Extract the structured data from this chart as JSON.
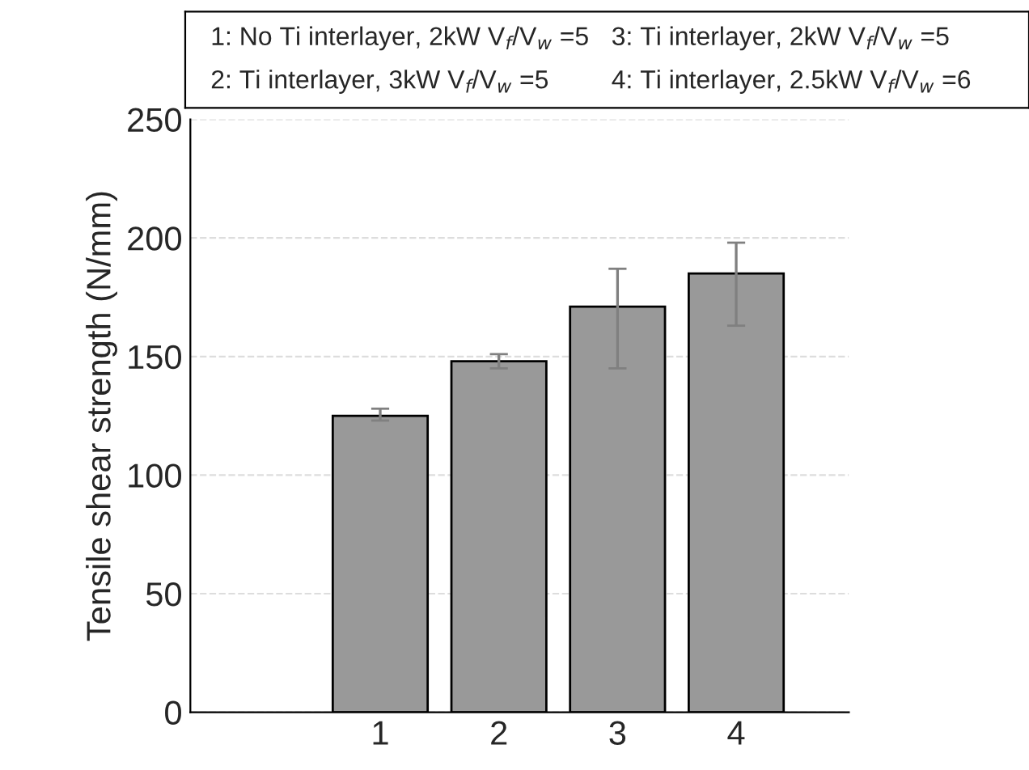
{
  "chart_data": {
    "type": "bar",
    "ylabel": "Tensile shear strength (N/mm)",
    "categories": [
      "1",
      "2",
      "3",
      "4"
    ],
    "values": [
      125,
      148,
      171,
      185
    ],
    "errors": [
      [
        123,
        128
      ],
      [
        145,
        151
      ],
      [
        145,
        187
      ],
      [
        163,
        198
      ]
    ],
    "color": "#999999",
    "ylim": [
      0,
      250
    ],
    "yticks": [
      0,
      50,
      100,
      150,
      200,
      250
    ],
    "grid": "y",
    "annotations": [
      "1: No Ti interlayer, 2kW V$_{f}$/V$_{w}$ =5",
      "2: Ti interlayer, 3kW V$_{f}$/V$_{w}$ =5",
      "3: Ti interlayer, 2kW V$_{f}$/V$_{w}$ =5",
      "4: Ti interlayer, 2.5kW V$_{f}$/V$_{w}$ =6"
    ]
  }
}
